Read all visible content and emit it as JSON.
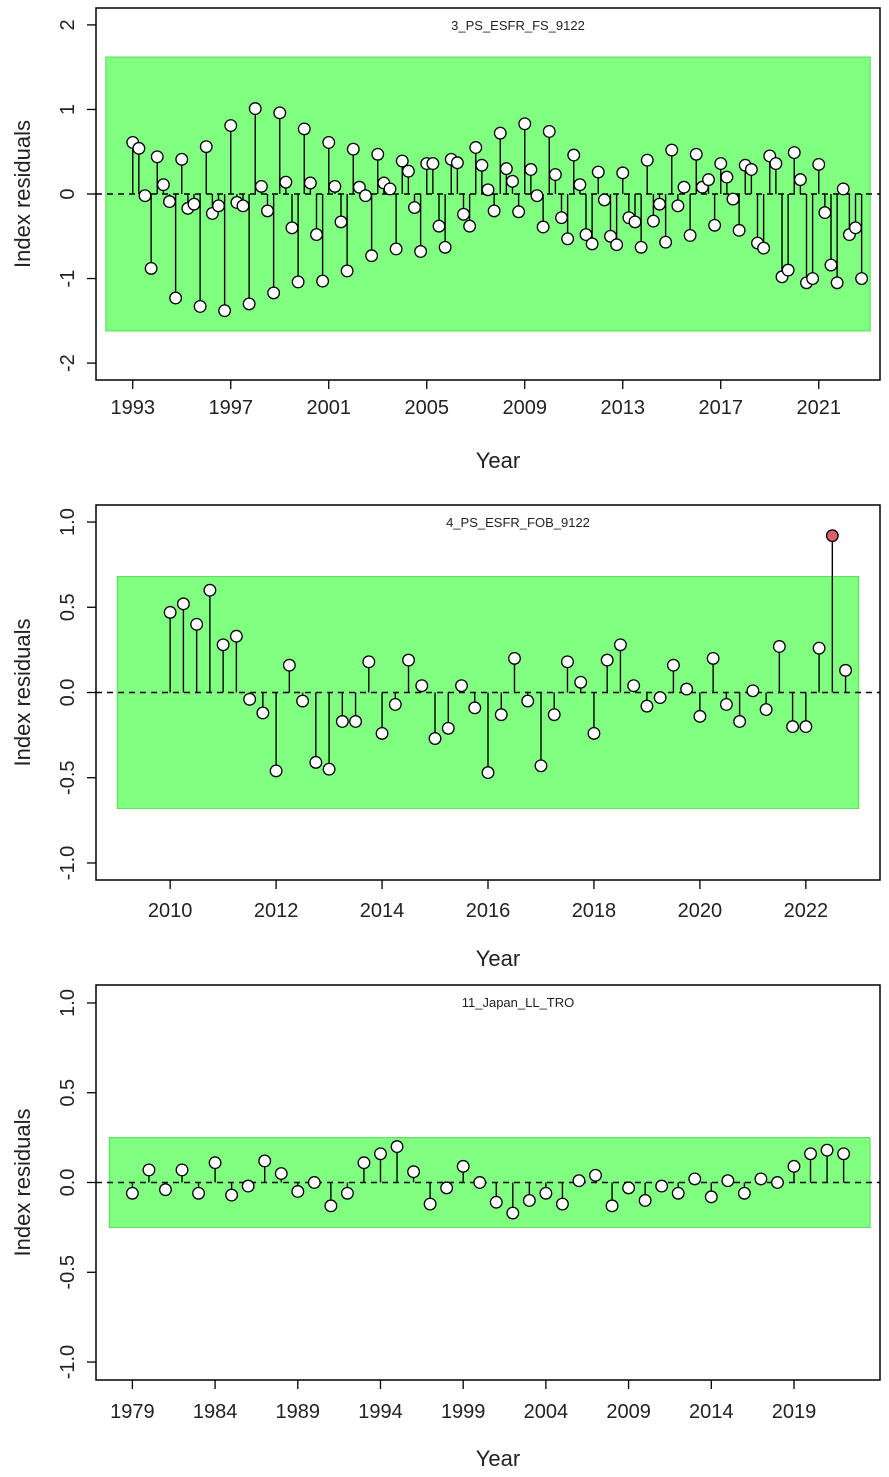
{
  "colors": {
    "band": "#80ff80",
    "band_edge": "#55dd55",
    "point_fill": "#ffffff",
    "outlier_fill": "#d9606a",
    "line": "#000000"
  },
  "chart_data": [
    {
      "type": "scatter",
      "title": "3_PS_ESFR_FS_9122",
      "xlabel": "Year",
      "ylabel": "Index residuals",
      "xlim": [
        1991.5,
        2023.5
      ],
      "ylim": [
        -2.2,
        2.2
      ],
      "xticks": [
        1993,
        1997,
        2001,
        2005,
        2009,
        2013,
        2017,
        2021
      ],
      "yticks": [
        -2,
        -1,
        0,
        1,
        2
      ],
      "band": [
        -1.62,
        1.62
      ],
      "band_x": [
        1991.9,
        2023.1
      ],
      "x": [
        1993.0,
        1993.25,
        1993.5,
        1993.75,
        1994.0,
        1994.25,
        1994.5,
        1994.75,
        1995.0,
        1995.25,
        1995.5,
        1995.75,
        1996.0,
        1996.25,
        1996.5,
        1996.75,
        1997.0,
        1997.25,
        1997.5,
        1997.75,
        1998.0,
        1998.25,
        1998.5,
        1998.75,
        1999.0,
        1999.25,
        1999.5,
        1999.75,
        2000.0,
        2000.25,
        2000.5,
        2000.75,
        2001.0,
        2001.25,
        2001.5,
        2001.75,
        2002.0,
        2002.25,
        2002.5,
        2002.75,
        2003.0,
        2003.25,
        2003.5,
        2003.75,
        2004.0,
        2004.25,
        2004.5,
        2004.75,
        2005.0,
        2005.25,
        2005.5,
        2005.75,
        2006.0,
        2006.25,
        2006.5,
        2006.75,
        2007.0,
        2007.25,
        2007.5,
        2007.75,
        2008.0,
        2008.25,
        2008.5,
        2008.75,
        2009.0,
        2009.25,
        2009.5,
        2009.75,
        2010.0,
        2010.25,
        2010.5,
        2010.75,
        2011.0,
        2011.25,
        2011.5,
        2011.75,
        2012.0,
        2012.25,
        2012.5,
        2012.75,
        2013.0,
        2013.25,
        2013.5,
        2013.75,
        2014.0,
        2014.25,
        2014.5,
        2014.75,
        2015.0,
        2015.25,
        2015.5,
        2015.75,
        2016.0,
        2016.25,
        2016.5,
        2016.75,
        2017.0,
        2017.25,
        2017.5,
        2017.75,
        2018.0,
        2018.25,
        2018.5,
        2018.75,
        2019.0,
        2019.25,
        2019.5,
        2019.75,
        2020.0,
        2020.25,
        2020.5,
        2020.75,
        2021.0,
        2021.25,
        2021.5,
        2021.75,
        2022.0,
        2022.25,
        2022.5,
        2022.75
      ],
      "y": [
        0.61,
        0.54,
        -0.02,
        -0.88,
        0.44,
        0.11,
        -0.09,
        -1.23,
        0.41,
        -0.17,
        -0.12,
        -1.33,
        0.56,
        -0.23,
        -0.14,
        -1.38,
        0.81,
        -0.1,
        -0.14,
        -1.3,
        1.01,
        0.09,
        -0.2,
        -1.17,
        0.96,
        0.14,
        -0.4,
        -1.04,
        0.77,
        0.13,
        -0.48,
        -1.03,
        0.61,
        0.09,
        -0.33,
        -0.91,
        0.53,
        0.08,
        -0.02,
        -0.73,
        0.47,
        0.13,
        0.06,
        -0.65,
        0.39,
        0.27,
        -0.16,
        -0.68,
        0.36,
        0.36,
        -0.38,
        -0.63,
        0.41,
        0.37,
        -0.24,
        -0.38,
        0.55,
        0.34,
        0.05,
        -0.2,
        0.72,
        0.3,
        0.15,
        -0.21,
        0.83,
        0.29,
        -0.02,
        -0.39,
        0.74,
        0.23,
        -0.28,
        -0.53,
        0.46,
        0.11,
        -0.48,
        -0.59,
        0.26,
        -0.07,
        -0.5,
        -0.6,
        0.25,
        -0.28,
        -0.33,
        -0.63,
        0.4,
        -0.32,
        -0.12,
        -0.57,
        0.52,
        -0.14,
        0.08,
        -0.49,
        0.47,
        0.08,
        0.17,
        -0.37,
        0.36,
        0.2,
        -0.06,
        -0.43,
        0.34,
        0.29,
        -0.58,
        -0.64,
        0.45,
        0.36,
        -0.98,
        -0.9,
        0.49,
        0.17,
        -1.05,
        -1.0,
        0.35,
        -0.22,
        -0.84,
        -1.05,
        0.06,
        -0.48,
        -0.4,
        -1.0
      ],
      "outliers": []
    },
    {
      "type": "scatter",
      "title": "4_PS_ESFR_FOB_9122",
      "xlabel": "Year",
      "ylabel": "Index residuals",
      "xlim": [
        2008.6,
        2023.4
      ],
      "ylim": [
        -1.1,
        1.1
      ],
      "xticks": [
        2010,
        2012,
        2014,
        2016,
        2018,
        2020,
        2022
      ],
      "yticks": [
        -1.0,
        -0.5,
        0.0,
        0.5,
        1.0
      ],
      "ytick_labels": [
        "-1.0",
        "-0.5",
        "0.0",
        "0.5",
        "1.0"
      ],
      "band": [
        -0.68,
        0.68
      ],
      "band_x": [
        2009.0,
        2023.0
      ],
      "x": [
        2010.0,
        2010.25,
        2010.5,
        2010.75,
        2011.0,
        2011.25,
        2011.5,
        2011.75,
        2012.0,
        2012.25,
        2012.5,
        2012.75,
        2013.0,
        2013.25,
        2013.5,
        2013.75,
        2014.0,
        2014.25,
        2014.5,
        2014.75,
        2015.0,
        2015.25,
        2015.5,
        2015.75,
        2016.0,
        2016.25,
        2016.5,
        2016.75,
        2017.0,
        2017.25,
        2017.5,
        2017.75,
        2018.0,
        2018.25,
        2018.5,
        2018.75,
        2019.0,
        2019.25,
        2019.5,
        2019.75,
        2020.0,
        2020.25,
        2020.5,
        2020.75,
        2021.0,
        2021.25,
        2021.5,
        2021.75,
        2022.0,
        2022.25,
        2022.5,
        2022.75
      ],
      "y": [
        0.47,
        0.52,
        0.4,
        0.6,
        0.28,
        0.33,
        -0.04,
        -0.12,
        -0.46,
        0.16,
        -0.05,
        -0.41,
        -0.45,
        -0.17,
        -0.17,
        0.18,
        -0.24,
        -0.07,
        0.19,
        0.04,
        -0.27,
        -0.21,
        0.04,
        -0.09,
        -0.47,
        -0.13,
        0.2,
        -0.05,
        -0.43,
        -0.13,
        0.18,
        0.06,
        -0.24,
        0.19,
        0.28,
        0.04,
        -0.08,
        -0.03,
        0.16,
        0.02,
        -0.14,
        0.2,
        -0.07,
        -0.17,
        0.01,
        -0.1,
        0.27,
        -0.2,
        -0.2,
        0.26,
        0.92,
        0.13
      ],
      "outliers": [
        2022.5
      ]
    },
    {
      "type": "scatter",
      "title": "11_Japan_LL_TRO",
      "xlabel": "Year",
      "ylabel": "Index residuals",
      "xlim": [
        1976.8,
        2024.2
      ],
      "ylim": [
        -1.1,
        1.1
      ],
      "xticks": [
        1979,
        1984,
        1989,
        1994,
        1999,
        2004,
        2009,
        2014,
        2019
      ],
      "yticks": [
        -1.0,
        -0.5,
        0.0,
        0.5,
        1.0
      ],
      "ytick_labels": [
        "-1.0",
        "-0.5",
        "0.0",
        "0.5",
        "1.0"
      ],
      "band": [
        -0.25,
        0.25
      ],
      "band_x": [
        1977.6,
        2023.6
      ],
      "x": [
        1979,
        1980,
        1981,
        1982,
        1983,
        1984,
        1985,
        1986,
        1987,
        1988,
        1989,
        1990,
        1991,
        1992,
        1993,
        1994,
        1995,
        1996,
        1997,
        1998,
        1999,
        2000,
        2001,
        2002,
        2003,
        2004,
        2005,
        2006,
        2007,
        2008,
        2009,
        2010,
        2011,
        2012,
        2013,
        2014,
        2015,
        2016,
        2017,
        2018,
        2019,
        2020,
        2021,
        2022
      ],
      "y": [
        -0.06,
        0.07,
        -0.04,
        0.07,
        -0.06,
        0.11,
        -0.07,
        -0.02,
        0.12,
        0.05,
        -0.05,
        0.0,
        -0.13,
        -0.06,
        0.11,
        0.16,
        0.2,
        0.06,
        -0.12,
        -0.03,
        0.09,
        0.0,
        -0.11,
        -0.17,
        -0.1,
        -0.06,
        -0.12,
        0.01,
        0.04,
        -0.13,
        -0.03,
        -0.1,
        -0.02,
        -0.06,
        0.02,
        -0.08,
        0.01,
        -0.06,
        0.02,
        0.0,
        0.09,
        0.16,
        0.18,
        0.16
      ],
      "outliers": []
    }
  ]
}
